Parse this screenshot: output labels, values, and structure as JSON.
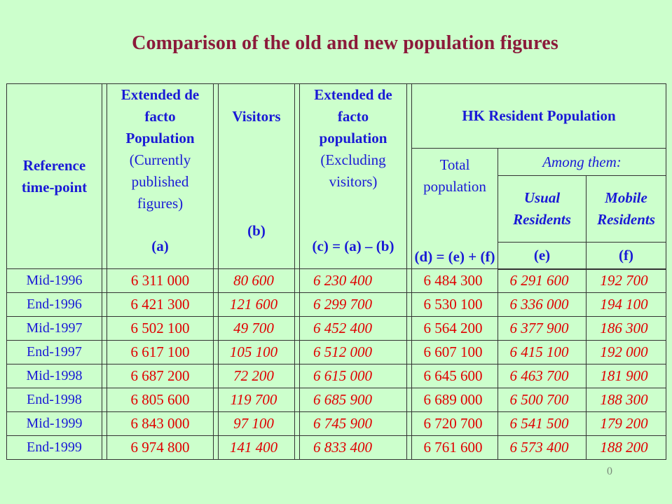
{
  "title": "Comparison of the old and new population figures",
  "headers": {
    "ref": [
      "Reference",
      "time-point"
    ],
    "col_a": {
      "bold": [
        "Extended de",
        "facto",
        "Population"
      ],
      "plain": [
        "(Currently",
        "published",
        "figures)"
      ],
      "code": "(a)"
    },
    "col_b": {
      "bold": "Visitors",
      "code": "(b)"
    },
    "col_c": {
      "bold": [
        "Extended de",
        "facto",
        "population"
      ],
      "plain": [
        "(Excluding",
        "visitors)"
      ],
      "code": "(c) = (a) – (b)"
    },
    "hk_group": "HK Resident Population",
    "col_d": {
      "plain": [
        "Total",
        "population"
      ],
      "code": "(d) = (e) + (f)"
    },
    "among": "Among them:",
    "col_e": {
      "italic": [
        "Usual",
        "Residents"
      ],
      "code": "(e)"
    },
    "col_f": {
      "italic": [
        "Mobile",
        "Residents"
      ],
      "code": "(f)"
    }
  },
  "rows": [
    {
      "label": "Mid-1996",
      "a": "6 311 000",
      "b": "80 600",
      "c": "6 230 400",
      "d": "6 484 300",
      "e": "6 291 600",
      "f": "192 700"
    },
    {
      "label": "End-1996",
      "a": "6 421 300",
      "b": "121 600",
      "c": "6 299 700",
      "d": "6 530 100",
      "e": "6 336 000",
      "f": "194 100"
    },
    {
      "label": "Mid-1997",
      "a": "6 502 100",
      "b": "49 700",
      "c": "6 452 400",
      "d": "6 564 200",
      "e": "6 377 900",
      "f": "186 300"
    },
    {
      "label": "End-1997",
      "a": "6 617 100",
      "b": "105 100",
      "c": "6 512 000",
      "d": "6 607 100",
      "e": "6 415 100",
      "f": "192 000"
    },
    {
      "label": "Mid-1998",
      "a": "6 687 200",
      "b": "72 200",
      "c": "6 615 000",
      "d": "6 645 600",
      "e": "6 463 700",
      "f": "181 900"
    },
    {
      "label": "End-1998",
      "a": "6 805 600",
      "b": "119 700",
      "c": "6 685 900",
      "d": "6 689 000",
      "e": "6 500 700",
      "f": "188 300"
    },
    {
      "label": "Mid-1999",
      "a": "6 843 000",
      "b": "97 100",
      "c": "6 745 900",
      "d": "6 720 700",
      "e": "6 541 500",
      "f": "179 200"
    },
    {
      "label": "End-1999",
      "a": "6 974 800",
      "b": "141 400",
      "c": "6 833 400",
      "d": "6 761 600",
      "e": "6 573 400",
      "f": "188 200"
    }
  ],
  "page_number": "0",
  "colors": {
    "background": "#ccffcc",
    "title": "#8b1a3a",
    "header_text": "#1a1ad6",
    "values": "#e00000"
  }
}
